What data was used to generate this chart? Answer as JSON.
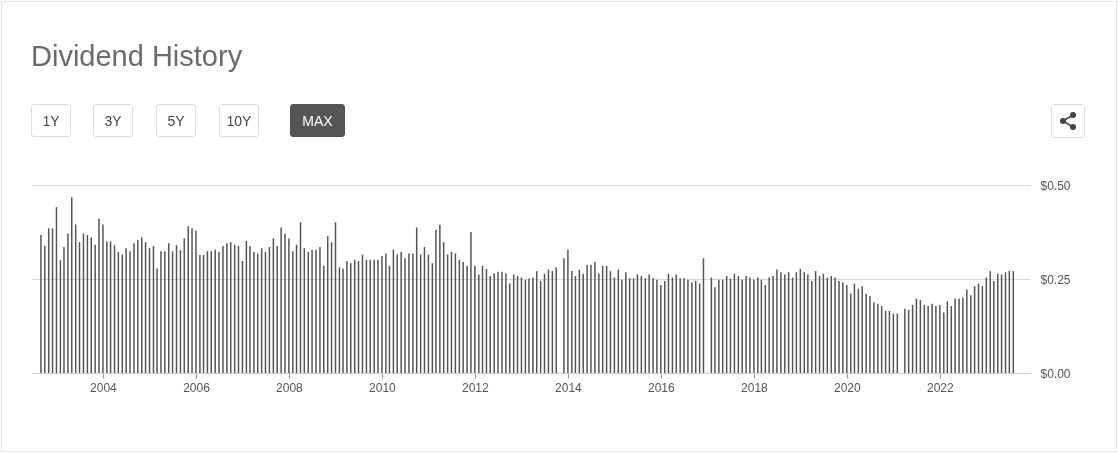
{
  "chart_data": {
    "type": "bar",
    "title": "Dividend History",
    "annotations": [
      "1Y",
      "3Y",
      "5Y",
      "10Y",
      "MAX"
    ],
    "x": [
      "2002-09",
      "2002-10",
      "2002-11",
      "2002-12",
      "2003-01",
      "2003-02",
      "2003-03",
      "2003-04",
      "2003-05",
      "2003-06",
      "2003-07",
      "2003-08",
      "2003-09",
      "2003-10",
      "2003-11",
      "2003-12",
      "2004-01",
      "2004-02",
      "2004-03",
      "2004-04",
      "2004-05",
      "2004-06",
      "2004-07",
      "2004-08",
      "2004-09",
      "2004-10",
      "2004-11",
      "2004-12",
      "2005-01",
      "2005-02",
      "2005-03",
      "2005-04",
      "2005-05",
      "2005-06",
      "2005-07",
      "2005-08",
      "2005-09",
      "2005-10",
      "2005-11",
      "2005-12",
      "2006-01",
      "2006-02",
      "2006-03",
      "2006-04",
      "2006-05",
      "2006-06",
      "2006-07",
      "2006-08",
      "2006-09",
      "2006-10",
      "2006-11",
      "2006-12",
      "2007-01",
      "2007-02",
      "2007-03",
      "2007-04",
      "2007-05",
      "2007-06",
      "2007-07",
      "2007-08",
      "2007-09",
      "2007-10",
      "2007-11",
      "2007-12",
      "2008-01",
      "2008-02",
      "2008-03",
      "2008-04",
      "2008-05",
      "2008-06",
      "2008-07",
      "2008-08",
      "2008-09",
      "2008-10",
      "2008-11",
      "2008-12",
      "2009-01",
      "2009-02",
      "2009-03",
      "2009-04",
      "2009-05",
      "2009-06",
      "2009-07",
      "2009-08",
      "2009-09",
      "2009-10",
      "2009-11",
      "2009-12",
      "2010-01",
      "2010-02",
      "2010-03",
      "2010-04",
      "2010-05",
      "2010-06",
      "2010-07",
      "2010-08",
      "2010-09",
      "2010-10",
      "2010-11",
      "2010-12",
      "2011-01",
      "2011-02",
      "2011-03",
      "2011-04",
      "2011-05",
      "2011-06",
      "2011-07",
      "2011-08",
      "2011-09",
      "2011-10",
      "2011-11",
      "2011-12",
      "2012-01",
      "2012-02",
      "2012-03",
      "2012-04",
      "2012-05",
      "2012-06",
      "2012-07",
      "2012-08",
      "2012-09",
      "2012-10",
      "2012-11",
      "2012-12",
      "2013-01",
      "2013-02",
      "2013-03",
      "2013-04",
      "2013-05",
      "2013-06",
      "2013-07",
      "2013-08",
      "2013-09",
      "2013-10",
      "2013-11",
      "2013-12",
      "2014-01",
      "2014-02",
      "2014-03",
      "2014-04",
      "2014-05",
      "2014-06",
      "2014-07",
      "2014-08",
      "2014-09",
      "2014-10",
      "2014-11",
      "2014-12",
      "2015-01",
      "2015-02",
      "2015-03",
      "2015-04",
      "2015-05",
      "2015-06",
      "2015-07",
      "2015-08",
      "2015-09",
      "2015-10",
      "2015-11",
      "2015-12",
      "2016-01",
      "2016-02",
      "2016-03",
      "2016-04",
      "2016-05",
      "2016-06",
      "2016-07",
      "2016-08",
      "2016-09",
      "2016-10",
      "2016-11",
      "2016-12",
      "2017-01",
      "2017-02",
      "2017-03",
      "2017-04",
      "2017-05",
      "2017-06",
      "2017-07",
      "2017-08",
      "2017-09",
      "2017-10",
      "2017-11",
      "2017-12",
      "2018-01",
      "2018-02",
      "2018-03",
      "2018-04",
      "2018-05",
      "2018-06",
      "2018-07",
      "2018-08",
      "2018-09",
      "2018-10",
      "2018-11",
      "2018-12",
      "2019-01",
      "2019-02",
      "2019-03",
      "2019-04",
      "2019-05",
      "2019-06",
      "2019-07",
      "2019-08",
      "2019-09",
      "2019-10",
      "2019-11",
      "2019-12",
      "2020-01",
      "2020-02",
      "2020-03",
      "2020-04",
      "2020-05",
      "2020-06",
      "2020-07",
      "2020-08",
      "2020-09",
      "2020-10",
      "2020-11",
      "2020-12",
      "2021-01",
      "2021-02",
      "2021-03",
      "2021-04",
      "2021-05",
      "2021-06",
      "2021-07",
      "2021-08",
      "2021-09",
      "2021-10",
      "2021-11",
      "2021-12",
      "2022-01",
      "2022-02",
      "2022-03",
      "2022-04",
      "2022-05",
      "2022-06",
      "2022-07",
      "2022-08",
      "2022-09",
      "2022-10",
      "2022-11",
      "2022-12",
      "2023-01",
      "2023-02",
      "2023-03",
      "2023-04",
      "2023-05",
      "2023-06",
      "2023-07",
      "2023-08"
    ],
    "values": [
      0.367,
      0.338,
      0.385,
      0.385,
      0.441,
      0.3,
      0.335,
      0.371,
      0.467,
      0.395,
      0.348,
      0.371,
      0.367,
      0.361,
      0.341,
      0.41,
      0.395,
      0.35,
      0.35,
      0.34,
      0.322,
      0.315,
      0.332,
      0.324,
      0.345,
      0.354,
      0.361,
      0.348,
      0.332,
      0.338,
      0.278,
      0.324,
      0.324,
      0.345,
      0.324,
      0.34,
      0.327,
      0.358,
      0.39,
      0.385,
      0.378,
      0.314,
      0.314,
      0.324,
      0.324,
      0.328,
      0.322,
      0.338,
      0.345,
      0.348,
      0.341,
      0.338,
      0.298,
      0.351,
      0.338,
      0.322,
      0.318,
      0.332,
      0.322,
      0.335,
      0.358,
      0.338,
      0.387,
      0.371,
      0.358,
      0.324,
      0.341,
      0.401,
      0.332,
      0.322,
      0.328,
      0.328,
      0.335,
      0.285,
      0.364,
      0.348,
      0.401,
      0.281,
      0.278,
      0.298,
      0.292,
      0.301,
      0.298,
      0.315,
      0.301,
      0.301,
      0.301,
      0.301,
      0.311,
      0.318,
      0.285,
      0.328,
      0.315,
      0.322,
      0.305,
      0.318,
      0.318,
      0.387,
      0.315,
      0.335,
      0.315,
      0.292,
      0.381,
      0.394,
      0.348,
      0.315,
      0.322,
      0.318,
      0.301,
      0.295,
      0.285,
      0.375,
      0.285,
      0.262,
      0.285,
      0.277,
      0.258,
      0.265,
      0.269,
      0.269,
      0.265,
      0.238,
      0.262,
      0.258,
      0.254,
      0.248,
      0.251,
      0.254,
      0.271,
      0.245,
      0.264,
      0.275,
      0.271,
      0.281,
      null,
      0.305,
      0.328,
      0.271,
      0.258,
      0.275,
      0.264,
      0.288,
      0.288,
      0.295,
      0.265,
      0.285,
      0.285,
      0.271,
      0.254,
      0.275,
      0.248,
      0.268,
      0.252,
      0.252,
      0.262,
      0.258,
      0.252,
      0.262,
      0.252,
      0.248,
      0.234,
      0.245,
      0.264,
      0.254,
      0.262,
      0.252,
      0.252,
      0.248,
      0.241,
      0.245,
      0.238,
      0.305,
      null,
      0.254,
      0.228,
      0.248,
      0.248,
      0.258,
      0.251,
      0.264,
      0.258,
      0.248,
      0.258,
      0.254,
      0.248,
      0.254,
      0.248,
      0.234,
      0.254,
      0.258,
      0.275,
      0.268,
      0.262,
      0.268,
      0.254,
      0.268,
      0.277,
      0.268,
      0.262,
      0.245,
      0.271,
      0.258,
      0.264,
      0.254,
      0.258,
      0.254,
      0.245,
      0.241,
      0.234,
      0.211,
      0.238,
      0.224,
      0.231,
      0.211,
      0.205,
      0.188,
      0.184,
      0.178,
      0.165,
      0.165,
      0.158,
      0.158,
      null,
      0.171,
      0.168,
      0.181,
      0.198,
      0.194,
      0.181,
      0.178,
      0.184,
      0.178,
      0.181,
      0.161,
      0.191,
      0.178,
      0.198,
      0.198,
      0.201,
      0.222,
      0.207,
      0.231,
      0.238,
      0.231,
      0.254,
      0.271,
      0.245,
      0.264,
      0.262,
      0.268,
      0.271,
      0.271
    ],
    "color": "#555555",
    "xlim": [
      "2002-08",
      "2023-11"
    ],
    "xticks": [
      "2004",
      "2006",
      "2008",
      "2010",
      "2012",
      "2014",
      "2016",
      "2018",
      "2020",
      "2022"
    ],
    "ylim": [
      0,
      0.5
    ],
    "yticks": [
      {
        "value": 0,
        "label": "$0.00"
      },
      {
        "value": 0.25,
        "label": "$0.25"
      },
      {
        "value": 0.5,
        "label": "$0.50"
      }
    ],
    "grid": "y"
  }
}
